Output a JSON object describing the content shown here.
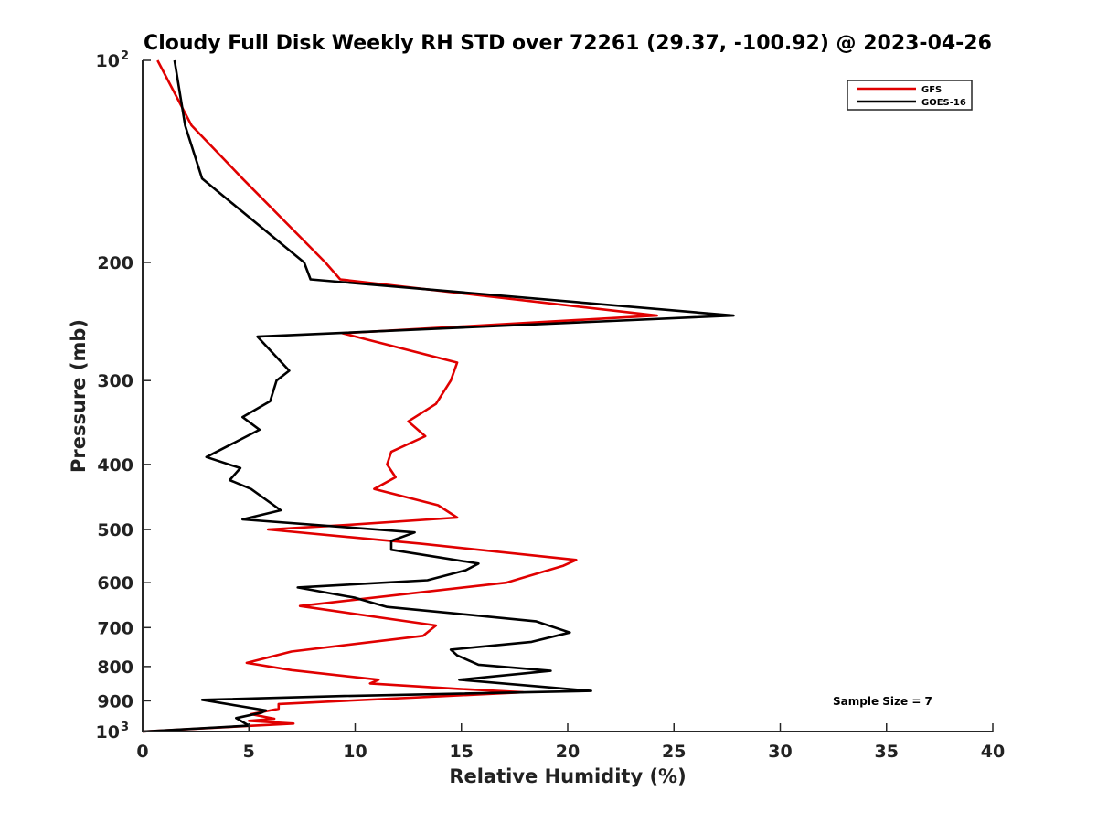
{
  "chart_data": {
    "type": "line",
    "title": "Cloudy Full Disk Weekly RH STD over 72261 (29.37, -100.92) @ 2023-04-26",
    "xlabel": "Relative Humidity (%)",
    "ylabel": "Pressure (mb)",
    "xlim": [
      0,
      40
    ],
    "ylim": [
      1000,
      100
    ],
    "y_scale": "log-reversed",
    "x_ticks": [
      {
        "value": 0,
        "label": "0"
      },
      {
        "value": 5,
        "label": "5"
      },
      {
        "value": 10,
        "label": "10"
      },
      {
        "value": 15,
        "label": "15"
      },
      {
        "value": 20,
        "label": "20"
      },
      {
        "value": 25,
        "label": "25"
      },
      {
        "value": 30,
        "label": "30"
      },
      {
        "value": 35,
        "label": "35"
      },
      {
        "value": 40,
        "label": "40"
      }
    ],
    "y_ticks": [
      {
        "value": 100,
        "base": "10",
        "exp": "2"
      },
      {
        "value": 200,
        "label": "200"
      },
      {
        "value": 300,
        "label": "300"
      },
      {
        "value": 400,
        "label": "400"
      },
      {
        "value": 500,
        "label": "500"
      },
      {
        "value": 600,
        "label": "600"
      },
      {
        "value": 700,
        "label": "700"
      },
      {
        "value": 800,
        "label": "800"
      },
      {
        "value": 900,
        "label": "900"
      },
      {
        "value": 1000,
        "base": "10",
        "exp": "3"
      }
    ],
    "grid": false,
    "legend_position": "top-right",
    "annotation": "Sample Size = 7",
    "series": [
      {
        "name": "GFS",
        "color": "#e00000",
        "points": [
          [
            0.7,
            100
          ],
          [
            2.3,
            125
          ],
          [
            4.7,
            150
          ],
          [
            8.6,
            200
          ],
          [
            9.3,
            212
          ],
          [
            24.2,
            240
          ],
          [
            9.4,
            255
          ],
          [
            14.8,
            282
          ],
          [
            14.5,
            300
          ],
          [
            13.8,
            325
          ],
          [
            12.5,
            345
          ],
          [
            13.3,
            363
          ],
          [
            11.7,
            383
          ],
          [
            11.5,
            400
          ],
          [
            11.9,
            418
          ],
          [
            10.9,
            435
          ],
          [
            13.9,
            460
          ],
          [
            14.8,
            480
          ],
          [
            9.7,
            492
          ],
          [
            5.9,
            500
          ],
          [
            13.1,
            525
          ],
          [
            20.4,
            555
          ],
          [
            19.8,
            566
          ],
          [
            17.1,
            600
          ],
          [
            7.4,
            650
          ],
          [
            13.8,
            695
          ],
          [
            13.2,
            720
          ],
          [
            7.0,
            760
          ],
          [
            4.9,
            790
          ],
          [
            7.0,
            810
          ],
          [
            11.1,
            837
          ],
          [
            10.7,
            848
          ],
          [
            14.9,
            864
          ],
          [
            17.9,
            874
          ],
          [
            6.4,
            910
          ],
          [
            6.4,
            925
          ],
          [
            5.1,
            942
          ],
          [
            6.2,
            957
          ],
          [
            5.0,
            964
          ],
          [
            7.1,
            973
          ],
          [
            0.0,
            1000
          ]
        ]
      },
      {
        "name": "GOES-16",
        "color": "#000000",
        "points": [
          [
            1.5,
            100
          ],
          [
            2.0,
            125
          ],
          [
            2.8,
            150
          ],
          [
            7.6,
            200
          ],
          [
            7.9,
            212
          ],
          [
            27.8,
            240
          ],
          [
            5.4,
            258
          ],
          [
            6.9,
            290
          ],
          [
            6.3,
            300
          ],
          [
            6.0,
            322
          ],
          [
            4.7,
            340
          ],
          [
            5.5,
            355
          ],
          [
            3.0,
            390
          ],
          [
            4.6,
            405
          ],
          [
            4.1,
            422
          ],
          [
            5.1,
            435
          ],
          [
            6.5,
            468
          ],
          [
            4.7,
            483
          ],
          [
            12.8,
            505
          ],
          [
            11.7,
            520
          ],
          [
            11.7,
            536
          ],
          [
            15.8,
            562
          ],
          [
            15.2,
            575
          ],
          [
            13.4,
            595
          ],
          [
            7.3,
            610
          ],
          [
            10.0,
            632
          ],
          [
            11.5,
            652
          ],
          [
            18.5,
            685
          ],
          [
            20.1,
            712
          ],
          [
            18.3,
            735
          ],
          [
            14.5,
            755
          ],
          [
            14.8,
            770
          ],
          [
            15.8,
            795
          ],
          [
            19.2,
            812
          ],
          [
            14.9,
            837
          ],
          [
            21.1,
            870
          ],
          [
            9.5,
            885
          ],
          [
            2.8,
            897
          ],
          [
            5.8,
            930
          ],
          [
            5.6,
            937
          ],
          [
            4.4,
            955
          ],
          [
            5.0,
            980
          ],
          [
            0.0,
            1000
          ]
        ]
      }
    ]
  }
}
